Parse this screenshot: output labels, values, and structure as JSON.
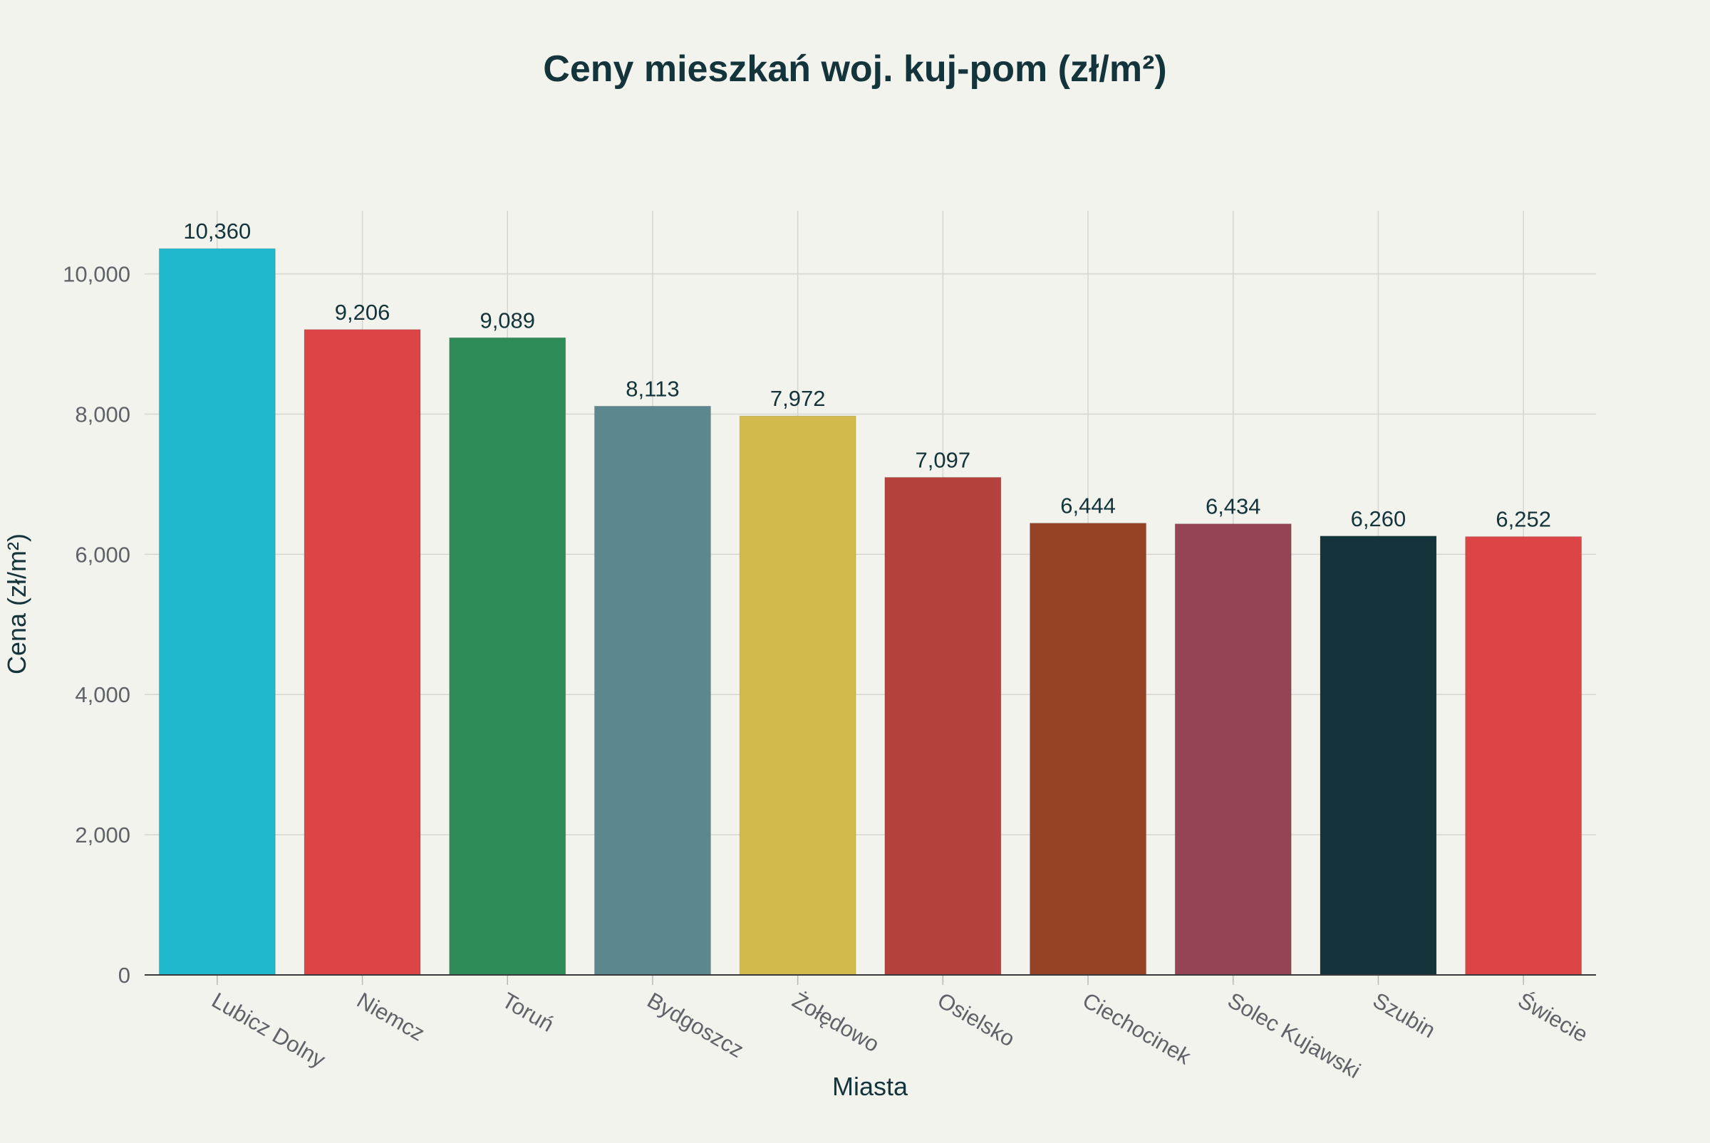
{
  "chart_data": {
    "type": "bar",
    "title": "Ceny mieszkań woj. kuj-pom (zł/m²)",
    "xlabel": "Miasta",
    "ylabel": "Cena (zł/m²)",
    "categories": [
      "Lubicz Dolny",
      "Niemcz",
      "Toruń",
      "Bydgoszcz",
      "Żołędowo",
      "Osielsko",
      "Ciechocinek",
      "Solec Kujawski",
      "Szubin",
      "Świecie"
    ],
    "values": [
      10360,
      9206,
      9089,
      8113,
      7972,
      7097,
      6444,
      6434,
      6260,
      6252
    ],
    "value_labels": [
      "10,360",
      "9,206",
      "9,089",
      "8,113",
      "7,972",
      "7,097",
      "6,444",
      "6,434",
      "6,260",
      "6,252"
    ],
    "colors": [
      "#1FB8CD",
      "#DB4545",
      "#2E8B57",
      "#5D878F",
      "#D2BA4C",
      "#B4413C",
      "#964325",
      "#944454",
      "#13343B",
      "#DB4545"
    ],
    "ylim": [
      0,
      10900
    ],
    "yticks": [
      0,
      2000,
      4000,
      6000,
      8000,
      10000
    ],
    "ytick_labels": [
      "0",
      "2,000",
      "4,000",
      "6,000",
      "8,000",
      "10,000"
    ],
    "grid": true,
    "legend": "none"
  }
}
